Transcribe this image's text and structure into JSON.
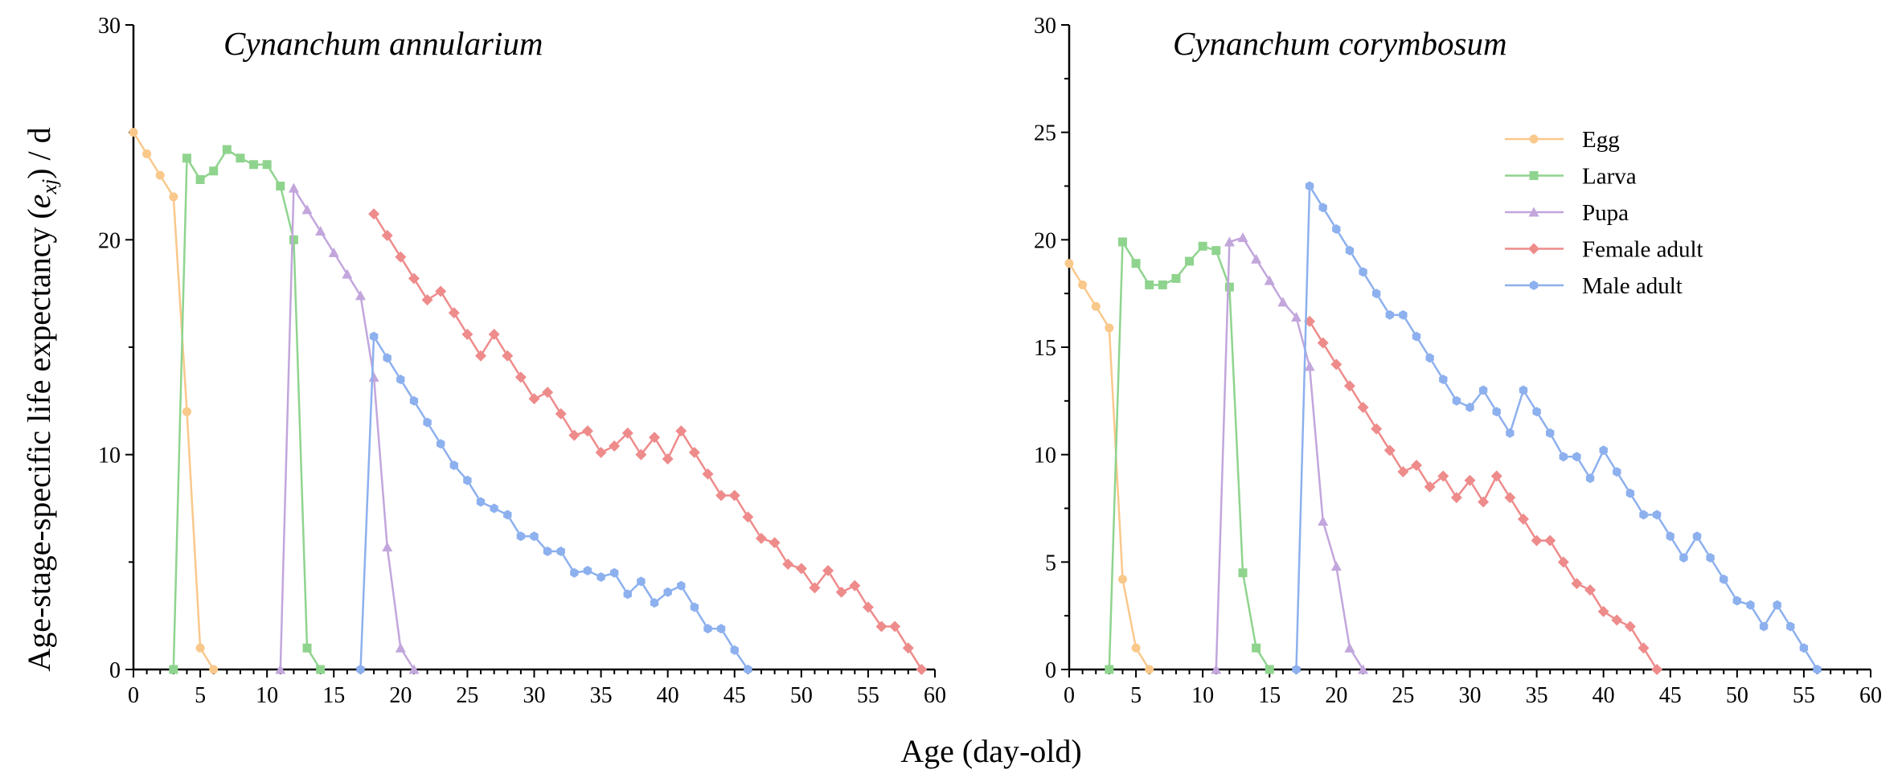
{
  "figure": {
    "ylabel_parts": [
      "Age-stage-specific life expectancy (",
      "e",
      "xj",
      ") / d"
    ],
    "xlabel": "Age (day-old)",
    "legend": {
      "placement": "inside top-right of right panel",
      "entries": [
        {
          "label": "Egg",
          "color": "#F9C88B",
          "marker": "circle"
        },
        {
          "label": "Larva",
          "color": "#8FD48E",
          "marker": "square"
        },
        {
          "label": "Pupa",
          "color": "#C2A6DC",
          "marker": "triangle"
        },
        {
          "label": "Female adult",
          "color": "#EE8B8B",
          "marker": "diamond"
        },
        {
          "label": "Male adult",
          "color": "#8DB0EE",
          "marker": "hexagon"
        }
      ]
    }
  },
  "chart_data": [
    {
      "type": "line",
      "title": "Cynanchum annularium",
      "xlim": [
        0,
        60
      ],
      "ylim": [
        0,
        30
      ],
      "xticks": [
        0,
        5,
        10,
        15,
        20,
        25,
        30,
        35,
        40,
        45,
        50,
        55,
        60
      ],
      "yticks": [
        0,
        10,
        20,
        30
      ],
      "grid": false,
      "series": [
        {
          "name": "Egg",
          "x": [
            0,
            1,
            2,
            3,
            4,
            5,
            6
          ],
          "y": [
            25,
            24,
            23,
            22,
            12,
            1,
            0
          ]
        },
        {
          "name": "Larva",
          "x": [
            3,
            4,
            5,
            6,
            7,
            8,
            9,
            10,
            11,
            12,
            13,
            14
          ],
          "y": [
            0,
            23.8,
            22.8,
            23.2,
            24.2,
            23.8,
            23.5,
            23.5,
            22.5,
            20,
            1,
            0
          ]
        },
        {
          "name": "Pupa",
          "x": [
            11,
            12,
            13,
            14,
            15,
            16,
            17,
            18,
            19,
            20,
            21
          ],
          "y": [
            0,
            22.4,
            21.4,
            20.4,
            19.4,
            18.4,
            17.4,
            13.6,
            5.7,
            1,
            0
          ]
        },
        {
          "name": "Female adult",
          "x": [
            18,
            19,
            20,
            21,
            22,
            23,
            24,
            25,
            26,
            27,
            28,
            29,
            30,
            31,
            32,
            33,
            34,
            35,
            36,
            37,
            38,
            39,
            40,
            41,
            42,
            43,
            44,
            45,
            46,
            47,
            48,
            49,
            50,
            51,
            52,
            53,
            54,
            55,
            56,
            57,
            58,
            59
          ],
          "y": [
            21.2,
            20.2,
            19.2,
            18.2,
            17.2,
            17.6,
            16.6,
            15.6,
            14.6,
            15.6,
            14.6,
            13.6,
            12.6,
            12.9,
            11.9,
            10.9,
            11.1,
            10.1,
            10.4,
            11,
            10,
            10.8,
            9.8,
            11.1,
            10.1,
            9.1,
            8.1,
            8.1,
            7.1,
            6.1,
            5.9,
            4.9,
            4.7,
            3.8,
            4.6,
            3.6,
            3.9,
            2.9,
            2,
            2,
            1,
            0
          ]
        },
        {
          "name": "Male adult",
          "x": [
            17,
            18,
            19,
            20,
            21,
            22,
            23,
            24,
            25,
            26,
            27,
            28,
            29,
            30,
            31,
            32,
            33,
            34,
            35,
            36,
            37,
            38,
            39,
            40,
            41,
            42,
            43,
            44,
            45,
            46
          ],
          "y": [
            0,
            15.5,
            14.5,
            13.5,
            12.5,
            11.5,
            10.5,
            9.5,
            8.8,
            7.8,
            7.5,
            7.2,
            6.2,
            6.2,
            5.5,
            5.5,
            4.5,
            4.6,
            4.3,
            4.5,
            3.5,
            4.1,
            3.1,
            3.6,
            3.9,
            2.9,
            1.9,
            1.9,
            0.9,
            0
          ]
        }
      ]
    },
    {
      "type": "line",
      "title": "Cynanchum corymbosum",
      "xlim": [
        0,
        60
      ],
      "ylim": [
        0,
        30
      ],
      "xticks": [
        0,
        5,
        10,
        15,
        20,
        25,
        30,
        35,
        40,
        45,
        50,
        55,
        60
      ],
      "yticks": [
        0,
        5,
        10,
        15,
        20,
        25,
        30
      ],
      "grid": false,
      "series": [
        {
          "name": "Egg",
          "x": [
            0,
            1,
            2,
            3,
            4,
            5,
            6
          ],
          "y": [
            18.9,
            17.9,
            16.9,
            15.9,
            4.2,
            1,
            0
          ]
        },
        {
          "name": "Larva",
          "x": [
            3,
            4,
            5,
            6,
            7,
            8,
            9,
            10,
            11,
            12,
            13,
            14,
            15
          ],
          "y": [
            0,
            19.9,
            18.9,
            17.9,
            17.9,
            18.2,
            19,
            19.7,
            19.5,
            17.8,
            4.5,
            1,
            0
          ]
        },
        {
          "name": "Pupa",
          "x": [
            11,
            12,
            13,
            14,
            15,
            16,
            17,
            18,
            19,
            20,
            21,
            22
          ],
          "y": [
            0,
            19.9,
            20.1,
            19.1,
            18.1,
            17.1,
            16.4,
            14.1,
            6.9,
            4.8,
            1,
            0
          ]
        },
        {
          "name": "Female adult",
          "x": [
            18,
            19,
            20,
            21,
            22,
            23,
            24,
            25,
            26,
            27,
            28,
            29,
            30,
            31,
            32,
            33,
            34,
            35,
            36,
            37,
            38,
            39,
            40,
            41,
            42,
            43,
            44
          ],
          "y": [
            16.2,
            15.2,
            14.2,
            13.2,
            12.2,
            11.2,
            10.2,
            9.2,
            9.5,
            8.5,
            9,
            8,
            8.8,
            7.8,
            9,
            8,
            7,
            6,
            6,
            5,
            4,
            3.7,
            2.7,
            2.3,
            2,
            1,
            0
          ]
        },
        {
          "name": "Male adult",
          "x": [
            17,
            18,
            19,
            20,
            21,
            22,
            23,
            24,
            25,
            26,
            27,
            28,
            29,
            30,
            31,
            32,
            33,
            34,
            35,
            36,
            37,
            38,
            39,
            40,
            41,
            42,
            43,
            44,
            45,
            46,
            47,
            48,
            49,
            50,
            51,
            52,
            53,
            54,
            55,
            56
          ],
          "y": [
            0,
            22.5,
            21.5,
            20.5,
            19.5,
            18.5,
            17.5,
            16.5,
            16.5,
            15.5,
            14.5,
            13.5,
            12.5,
            12.2,
            13,
            12,
            11,
            13,
            12,
            11,
            9.9,
            9.9,
            8.9,
            10.2,
            9.2,
            8.2,
            7.2,
            7.2,
            6.2,
            5.2,
            6.2,
            5.2,
            4.2,
            3.2,
            3,
            2,
            3,
            2,
            1,
            0
          ]
        }
      ]
    }
  ]
}
